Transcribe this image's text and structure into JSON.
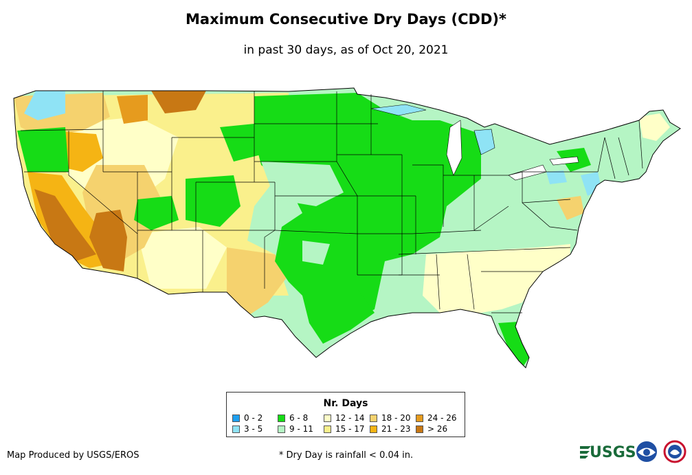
{
  "header": {
    "title": "Maximum Consecutive Dry Days (CDD)*",
    "subtitle": "in past 30 days, as of Oct 20, 2021"
  },
  "legend": {
    "title": "Nr. Days",
    "items": [
      {
        "label": "0 - 2",
        "color": "#1ea0f0"
      },
      {
        "label": "3 - 5",
        "color": "#8fe3f5"
      },
      {
        "label": "6 - 8",
        "color": "#16dc16"
      },
      {
        "label": "9 - 11",
        "color": "#b5f5c4"
      },
      {
        "label": "12 - 14",
        "color": "#ffffc8"
      },
      {
        "label": "15 - 17",
        "color": "#faf08c"
      },
      {
        "label": "18 - 20",
        "color": "#f5d26e"
      },
      {
        "label": "21 - 23",
        "color": "#f5b414"
      },
      {
        "label": "24 - 26",
        "color": "#e69b1e"
      },
      {
        "label": "> 26",
        "color": "#c87814"
      }
    ]
  },
  "footer": {
    "credit": "Map Produced by USGS/EROS",
    "footnote": "* Dry Day is rainfall < 0.04 in.",
    "logos": [
      "USGS",
      "NOAA",
      "National Weather Service"
    ]
  }
}
